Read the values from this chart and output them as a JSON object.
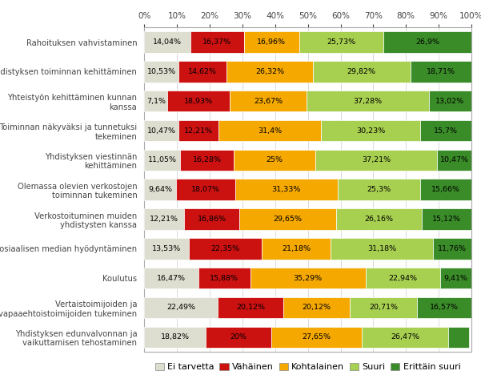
{
  "categories": [
    "Rahoituksen vahvistaminen",
    "Yhdistyksen toiminnan kehittäminen",
    "Yhteistyön kehittäminen kunnan\nkanssa",
    "Toiminnan näkyväksi ja tunnetuksi\ntekeminen",
    "Yhdistyksen viestinnän\nkehittäminen",
    "Olemassa olevien verkostojen\ntoiminnan tukeminen",
    "Verkostoituminen muiden\nyhdistysten kanssa",
    "Sosiaalisen median hyödyntäminen",
    "Koulutus",
    "Vertaistoimijoiden ja\nvapaaehtoistoimijoiden tukeminen",
    "Yhdistyksen edunvalvonnan ja\nvaikuttamisen tehostaminen"
  ],
  "series": {
    "Ei tarvetta": [
      14.04,
      10.53,
      7.1,
      10.47,
      11.05,
      9.64,
      12.21,
      13.53,
      16.47,
      22.49,
      18.82
    ],
    "Vähäinen": [
      16.37,
      14.62,
      18.93,
      12.21,
      16.28,
      18.07,
      16.86,
      22.35,
      15.88,
      20.12,
      20.0
    ],
    "Kohtalainen": [
      16.96,
      26.32,
      23.67,
      31.4,
      25.0,
      31.33,
      29.65,
      21.18,
      35.29,
      20.12,
      27.65
    ],
    "Suuri": [
      25.73,
      29.82,
      37.28,
      30.23,
      37.21,
      25.3,
      26.16,
      31.18,
      22.94,
      20.71,
      26.47
    ],
    "Erittäin suuri": [
      26.9,
      18.71,
      13.02,
      15.7,
      10.47,
      15.66,
      15.12,
      11.76,
      9.41,
      16.57,
      6.24
    ]
  },
  "labels": {
    "Ei tarvetta": [
      "14,04%",
      "10,53%",
      "7,1%",
      "10,47%",
      "11,05%",
      "9,64%",
      "12,21%",
      "13,53%",
      "16,47%",
      "22,49%",
      "18,82%"
    ],
    "Vähäinen": [
      "16,37%",
      "14,62%",
      "18,93%",
      "12,21%",
      "16,28%",
      "18,07%",
      "16,86%",
      "22,35%",
      "15,88%",
      "20,12%",
      "20%"
    ],
    "Kohtalainen": [
      "16,96%",
      "26,32%",
      "23,67%",
      "31,4%",
      "25%",
      "31,33%",
      "29,65%",
      "21,18%",
      "35,29%",
      "20,12%",
      "27,65%"
    ],
    "Suuri": [
      "25,73%",
      "29,82%",
      "37,28%",
      "30,23%",
      "37,21%",
      "25,3%",
      "26,16%",
      "31,18%",
      "22,94%",
      "20,71%",
      "26,47%"
    ],
    "Erittäin suuri": [
      "26,9%",
      "18,71%",
      "13,02%",
      "15,7%",
      "10,47%",
      "15,66%",
      "15,12%",
      "11,76%",
      "9,41%",
      "16,57%",
      ""
    ]
  },
  "colors": {
    "Ei tarvetta": "#deded0",
    "Vähäinen": "#cc1111",
    "Kohtalainen": "#f5a800",
    "Suuri": "#a8d050",
    "Erittäin suuri": "#3a8c28"
  },
  "bar_height": 0.72,
  "background_color": "#ffffff",
  "axis_label_fontsize": 7.2,
  "bar_label_fontsize": 6.8,
  "legend_fontsize": 8.0
}
